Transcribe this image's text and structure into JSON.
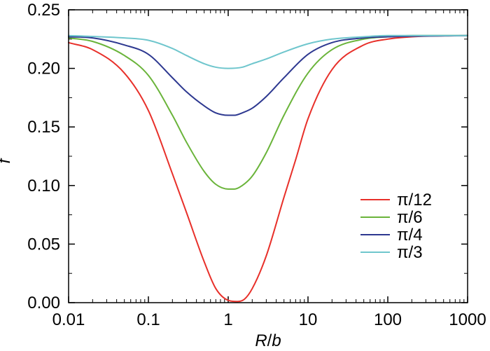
{
  "chart_data": {
    "type": "line",
    "xscale": "log",
    "xlabel_main": "R",
    "xlabel_sep": "/",
    "xlabel_sub": "b",
    "ylabel": "f",
    "xlim": [
      0.01,
      1000
    ],
    "ylim": [
      0,
      0.25
    ],
    "xticks": [
      {
        "value": 0.01,
        "label": "0.01"
      },
      {
        "value": 0.1,
        "label": "0.1"
      },
      {
        "value": 1,
        "label": "1"
      },
      {
        "value": 10,
        "label": "10"
      },
      {
        "value": 100,
        "label": "100"
      },
      {
        "value": 1000,
        "label": "1000"
      }
    ],
    "yticks": [
      {
        "value": 0,
        "label": "0.00"
      },
      {
        "value": 0.05,
        "label": "0.05"
      },
      {
        "value": 0.1,
        "label": "0.10"
      },
      {
        "value": 0.15,
        "label": "0.15"
      },
      {
        "value": 0.2,
        "label": "0.20"
      },
      {
        "value": 0.25,
        "label": "0.25"
      }
    ],
    "legend_position": "right-lower",
    "series": [
      {
        "name": "π/12",
        "color": "#e8302a",
        "x": [
          0.01,
          0.02,
          0.05,
          0.1,
          0.2,
          0.3,
          0.5,
          0.7,
          1.0,
          1.3,
          1.6,
          2,
          3,
          5,
          7,
          10,
          20,
          50,
          100,
          200,
          1000
        ],
        "y": [
          0.222,
          0.216,
          0.196,
          0.164,
          0.11,
          0.077,
          0.035,
          0.012,
          0.002,
          0.001,
          0.003,
          0.012,
          0.04,
          0.09,
          0.122,
          0.157,
          0.199,
          0.22,
          0.225,
          0.227,
          0.228
        ]
      },
      {
        "name": "π/6",
        "color": "#6ab43a",
        "x": [
          0.01,
          0.02,
          0.05,
          0.1,
          0.2,
          0.3,
          0.5,
          0.7,
          1.0,
          1.2,
          1.5,
          2,
          3,
          5,
          10,
          20,
          50,
          100,
          200,
          1000
        ],
        "y": [
          0.226,
          0.223,
          0.211,
          0.194,
          0.16,
          0.137,
          0.112,
          0.101,
          0.097,
          0.097,
          0.1,
          0.108,
          0.128,
          0.16,
          0.196,
          0.216,
          0.225,
          0.227,
          0.228,
          0.228
        ]
      },
      {
        "name": "π/4",
        "color": "#2d3890",
        "x": [
          0.01,
          0.02,
          0.05,
          0.1,
          0.2,
          0.3,
          0.5,
          0.7,
          1.0,
          1.2,
          1.5,
          2,
          3,
          5,
          10,
          20,
          50,
          100,
          1000
        ],
        "y": [
          0.227,
          0.226,
          0.22,
          0.212,
          0.192,
          0.18,
          0.168,
          0.162,
          0.16,
          0.16,
          0.162,
          0.166,
          0.176,
          0.192,
          0.212,
          0.222,
          0.226,
          0.227,
          0.228
        ]
      },
      {
        "name": "π/3",
        "color": "#6fc6cd",
        "x": [
          0.01,
          0.05,
          0.1,
          0.2,
          0.3,
          0.5,
          0.7,
          1.0,
          1.5,
          2,
          3,
          5,
          10,
          20,
          50,
          100,
          1000
        ],
        "y": [
          0.228,
          0.226,
          0.224,
          0.217,
          0.211,
          0.204,
          0.201,
          0.2,
          0.201,
          0.204,
          0.208,
          0.214,
          0.221,
          0.225,
          0.227,
          0.228,
          0.228
        ]
      }
    ]
  }
}
